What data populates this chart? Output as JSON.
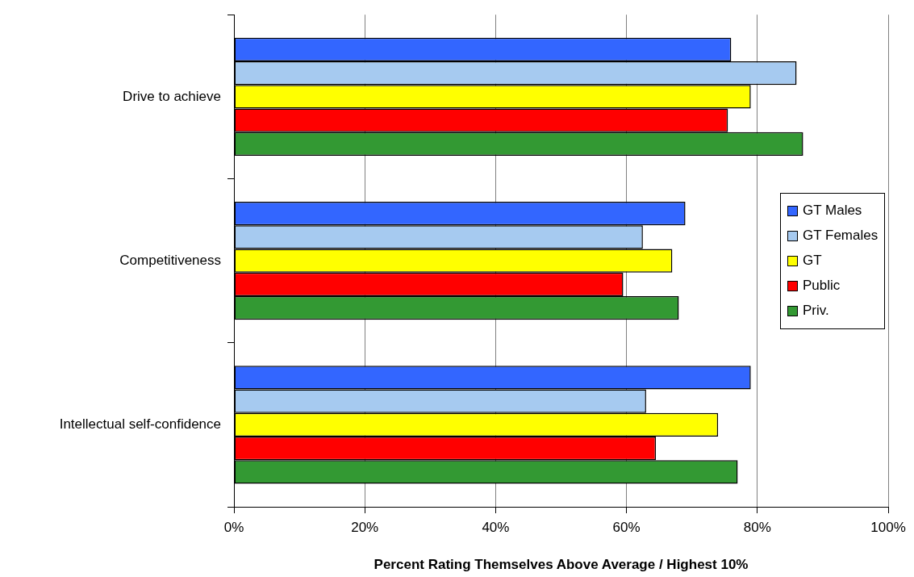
{
  "chart_data": {
    "type": "bar",
    "orientation": "horizontal",
    "xlabel": "Percent Rating Themselves Above Average / Highest 10%",
    "categories": [
      "Drive to achieve",
      "Competitiveness",
      "Intellectual self-confidence"
    ],
    "series": [
      {
        "name": "GT Males",
        "color": "#3366ff",
        "values": [
          76,
          69,
          79
        ]
      },
      {
        "name": "GT Females",
        "color": "#a6caf0",
        "values": [
          86,
          62.5,
          63
        ]
      },
      {
        "name": "GT",
        "color": "#ffff00",
        "values": [
          79,
          67,
          74
        ]
      },
      {
        "name": "Public",
        "color": "#ff0000",
        "values": [
          75.5,
          59.5,
          64.5
        ]
      },
      {
        "name": "Priv.",
        "color": "#339933",
        "values": [
          87,
          68,
          77
        ]
      }
    ],
    "xlim": [
      0,
      100
    ],
    "xticks": [
      {
        "value": 0,
        "label": "0%"
      },
      {
        "value": 20,
        "label": "20%"
      },
      {
        "value": 40,
        "label": "40%"
      },
      {
        "value": 60,
        "label": "60%"
      },
      {
        "value": 80,
        "label": "80%"
      },
      {
        "value": 100,
        "label": "100%"
      }
    ],
    "grid": "x",
    "legend": "right"
  }
}
